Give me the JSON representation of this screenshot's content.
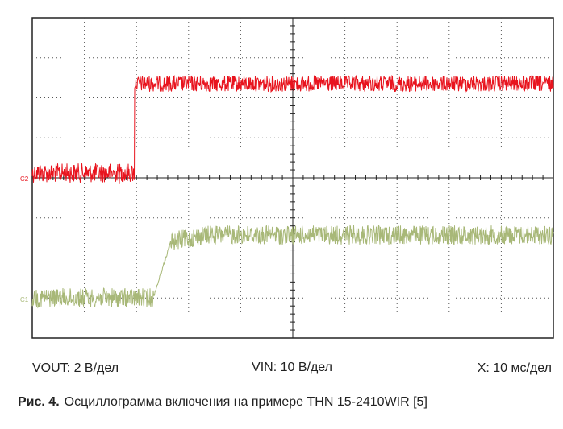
{
  "figure": {
    "channels": [
      {
        "label": "C2"
      },
      {
        "label": "C1"
      }
    ],
    "scales": [
      "VOUT: 2 В/дел",
      "VIN: 10 В/дел",
      "X: 10 мс/дел"
    ],
    "caption": {
      "number": "Рис. 4.",
      "text": "Осциллограмма включения на примере THN 15-2410WIR [5]"
    }
  }
}
